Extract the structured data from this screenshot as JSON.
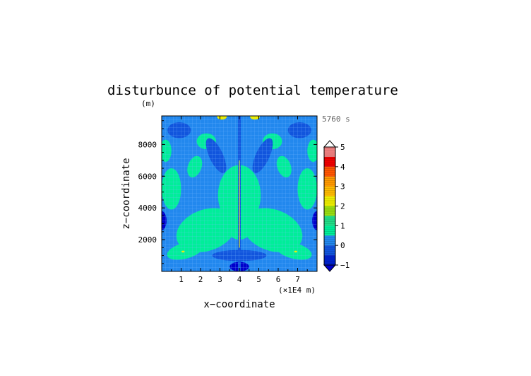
{
  "chart_data": {
    "type": "heatmap",
    "title": "disturbunce of potential temperature",
    "y_unit": "(m)",
    "xlabel": "x−coordinate",
    "ylabel": "z−coordinate",
    "x_unit": "(×1E4 m)",
    "time_label": "5760 s",
    "xlim": [
      0,
      8
    ],
    "ylim": [
      0,
      9800
    ],
    "x_ticks": [
      {
        "value": 1,
        "label": "1"
      },
      {
        "value": 2,
        "label": "2"
      },
      {
        "value": 3,
        "label": "3"
      },
      {
        "value": 4,
        "label": "4"
      },
      {
        "value": 5,
        "label": "5"
      },
      {
        "value": 6,
        "label": "6"
      },
      {
        "value": 7,
        "label": "7"
      }
    ],
    "y_ticks": [
      {
        "value": 2000,
        "label": "2000"
      },
      {
        "value": 4000,
        "label": "4000"
      },
      {
        "value": 6000,
        "label": "6000"
      },
      {
        "value": 8000,
        "label": "8000"
      }
    ],
    "colorbar": {
      "range": [
        -1,
        5
      ],
      "ticks": [
        {
          "value": -1,
          "label": "−1"
        },
        {
          "value": 0,
          "label": "0"
        },
        {
          "value": 1,
          "label": "1"
        },
        {
          "value": 2,
          "label": "2"
        },
        {
          "value": 3,
          "label": "3"
        },
        {
          "value": 4,
          "label": "4"
        },
        {
          "value": 5,
          "label": "5"
        }
      ],
      "levels": [
        {
          "from": 0.5,
          "to": 1.0,
          "color": "#00ee99"
        },
        {
          "from": 1.0,
          "to": 1.5,
          "color": "#22dd88"
        },
        {
          "from": 1.5,
          "to": 2.0,
          "color": "#99dd11"
        },
        {
          "from": 2.0,
          "to": 2.5,
          "color": "#eeee00"
        },
        {
          "from": 2.5,
          "to": 3.0,
          "color": "#ffbb00"
        },
        {
          "from": 3.0,
          "to": 3.5,
          "color": "#ff9900"
        },
        {
          "from": 3.5,
          "to": 4.0,
          "color": "#ff5500"
        },
        {
          "from": 4.0,
          "to": 4.5,
          "color": "#ee0000"
        },
        {
          "from": 4.5,
          "to": 5.0,
          "color": "#f08080"
        },
        {
          "from": 5.0,
          "to": 5.5,
          "color": "#f4aaaa"
        }
      ],
      "under_color": "#0000cc",
      "over_color": "#ffffff"
    },
    "colors": {
      "background_field": "#2288ee",
      "warm_anomaly": "#00ee99",
      "strong_warm": "#eeee00",
      "cool_anomaly": "#1155dd",
      "strong_cool": "#0000cc",
      "grid": "#77bbff"
    },
    "field_samples": [
      {
        "x": 0.1,
        "z": 3000,
        "value": -0.8
      },
      {
        "x": 7.9,
        "z": 3000,
        "value": -0.8
      },
      {
        "x": 0.6,
        "z": 5000,
        "value": 0.6
      },
      {
        "x": 7.4,
        "z": 5000,
        "value": 0.6
      },
      {
        "x": 2.2,
        "z": 2500,
        "value": 0.7
      },
      {
        "x": 5.8,
        "z": 2500,
        "value": 0.7
      },
      {
        "x": 4.0,
        "z": 5500,
        "value": 0.7
      },
      {
        "x": 1.2,
        "z": 1200,
        "value": 0.6
      },
      {
        "x": 6.8,
        "z": 1200,
        "value": 0.6
      },
      {
        "x": 4.0,
        "z": 200,
        "value": -1.0
      },
      {
        "x": 3.1,
        "z": 9700,
        "value": 1.8
      },
      {
        "x": 4.8,
        "z": 9700,
        "value": 1.8
      }
    ],
    "grid": true
  }
}
